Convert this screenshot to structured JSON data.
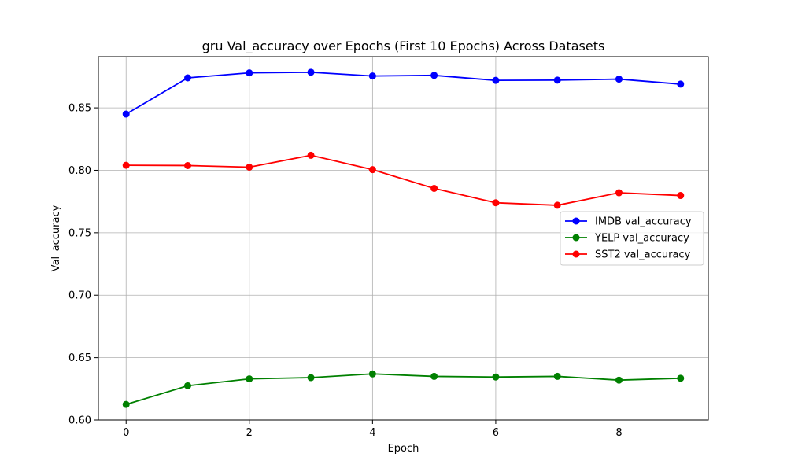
{
  "chart_data": {
    "type": "line",
    "title": "gru Val_accuracy over Epochs (First 10 Epochs) Across Datasets",
    "xlabel": "Epoch",
    "ylabel": "Val_accuracy",
    "xlim": [
      -0.45,
      9.45
    ],
    "ylim": [
      0.6,
      0.891
    ],
    "x_ticks": [
      0,
      2,
      4,
      6,
      8
    ],
    "y_ticks": [
      0.6,
      0.65,
      0.7,
      0.75,
      0.8,
      0.85
    ],
    "x_tick_labels": [
      "0",
      "2",
      "4",
      "6",
      "8"
    ],
    "y_tick_labels": [
      "0.60",
      "0.65",
      "0.70",
      "0.75",
      "0.80",
      "0.85"
    ],
    "grid": true,
    "legend_position": "center-right",
    "x": [
      0,
      1,
      2,
      3,
      4,
      5,
      6,
      7,
      8,
      9
    ],
    "series": [
      {
        "name": "IMDB val_accuracy",
        "color": "#0000ff",
        "values": [
          0.845,
          0.874,
          0.878,
          0.8785,
          0.8755,
          0.876,
          0.872,
          0.8722,
          0.873,
          0.869
        ]
      },
      {
        "name": "YELP val_accuracy",
        "color": "#008000",
        "values": [
          0.6125,
          0.6275,
          0.633,
          0.634,
          0.637,
          0.635,
          0.6345,
          0.635,
          0.632,
          0.6335
        ]
      },
      {
        "name": "SST2 val_accuracy",
        "color": "#ff0000",
        "values": [
          0.804,
          0.8038,
          0.8025,
          0.812,
          0.8005,
          0.7855,
          0.774,
          0.772,
          0.782,
          0.7798
        ]
      }
    ]
  }
}
